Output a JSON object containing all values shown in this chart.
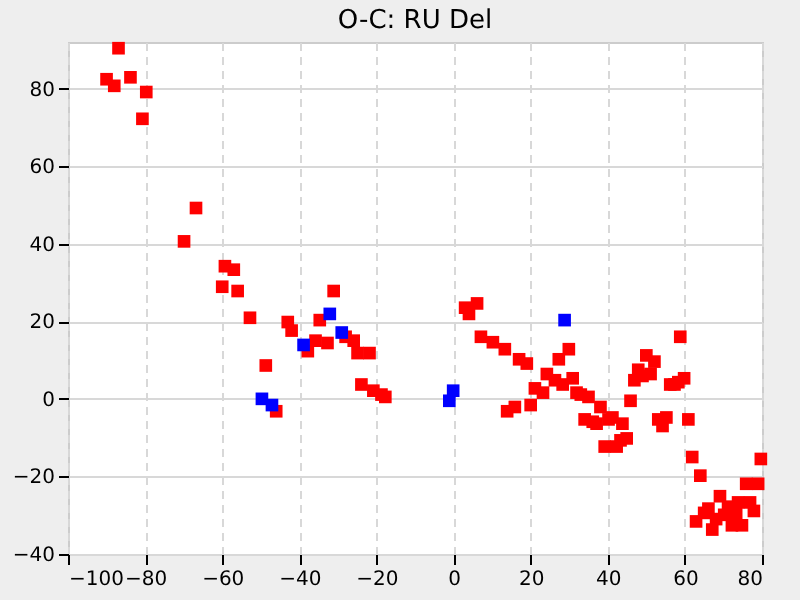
{
  "chart_data": {
    "type": "scatter",
    "title": "O-C: RU Del",
    "marker": "square",
    "grid": true,
    "xlim": [
      -100,
      80
    ],
    "xticks": [
      -100,
      -80,
      -60,
      -40,
      -20,
      0,
      20,
      40,
      60,
      80
    ],
    "ylim": [
      -40,
      92
    ],
    "yticks": [
      -40,
      -20,
      0,
      20,
      40,
      60,
      80
    ],
    "series": [
      {
        "color": "#ff0000",
        "x": [
          -90,
          -88,
          -86.9,
          -83.8,
          -80.7,
          -79.7,
          -69.9,
          -66.8,
          -60,
          -59.3,
          -57,
          -56,
          -52.8,
          -48.7,
          -46,
          -43,
          -42,
          -37.8,
          -35.8,
          -34.7,
          -32.7,
          -31.1,
          -28,
          -25.9,
          -24.9,
          -23.9,
          -21.8,
          -20.8,
          -18.7,
          -17.7,
          3,
          4,
          6.1,
          7.1,
          10.2,
          13.3,
          13.9,
          15.9,
          17,
          19,
          20,
          21.1,
          23.2,
          24.2,
          26.3,
          27.3,
          28.3,
          29.9,
          30.9,
          31.9,
          33,
          34,
          35,
          36.1,
          37.1,
          38.1,
          39.2,
          40.2,
          41.2,
          42.3,
          43.3,
          43.8,
          44.9,
          45.9,
          46.9,
          47.9,
          49,
          50,
          51.1,
          52.1,
          53.1,
          54.2,
          55.2,
          56.2,
          57.3,
          58.3,
          58.8,
          59.8,
          60.9,
          61.9,
          62.9,
          64,
          65,
          66.1,
          67.1,
          68.1,
          69.1,
          70.2,
          71.2,
          72.2,
          73.3,
          73.8,
          74.8,
          75.9,
          76.9,
          77.9,
          79,
          79.7
        ],
        "values": [
          82.4,
          80.7,
          90.4,
          82.9,
          72.2,
          79.1,
          40.6,
          49.2,
          28.9,
          34.2,
          33.3,
          27.8,
          20.9,
          8.6,
          -3.2,
          19.8,
          17.6,
          12.3,
          15,
          20.3,
          14.4,
          27.8,
          16,
          15,
          11.8,
          3.7,
          11.8,
          2.1,
          1.1,
          0.5,
          23.5,
          21.9,
          24.6,
          16,
          14.6,
          12.8,
          -3.2,
          -2.1,
          10.2,
          9.1,
          -1.6,
          2.7,
          1.6,
          6.4,
          4.8,
          10.2,
          3.7,
          12.8,
          5.3,
          1.6,
          1.1,
          -5.3,
          0.5,
          -5.9,
          -6.4,
          -2.1,
          -12.3,
          -5.3,
          -4.8,
          -12.3,
          -10.7,
          -6.4,
          -10.2,
          -0.5,
          4.8,
          7.5,
          5.9,
          11.2,
          6.4,
          9.6,
          -5.3,
          -7,
          -4.8,
          3.7,
          3.7,
          4.3,
          16,
          5.3,
          -5.3,
          -15,
          -31.6,
          -19.8,
          -29.4,
          -28.3,
          -33.7,
          -31,
          -25.1,
          -29.9,
          -27.8,
          -32.6,
          -29.4,
          -26.7,
          -32.6,
          -21.9,
          -26.7,
          -28.9,
          -21.9,
          -15.5
        ]
      },
      {
        "color": "#0000ff",
        "x": [
          -49.7,
          -47.1,
          -38.9,
          -32.1,
          -29,
          -1.1,
          -0.1,
          28.8
        ],
        "values": [
          0,
          -1.6,
          13.9,
          21.9,
          17.1,
          -0.5,
          2.1,
          20.3
        ]
      }
    ]
  }
}
